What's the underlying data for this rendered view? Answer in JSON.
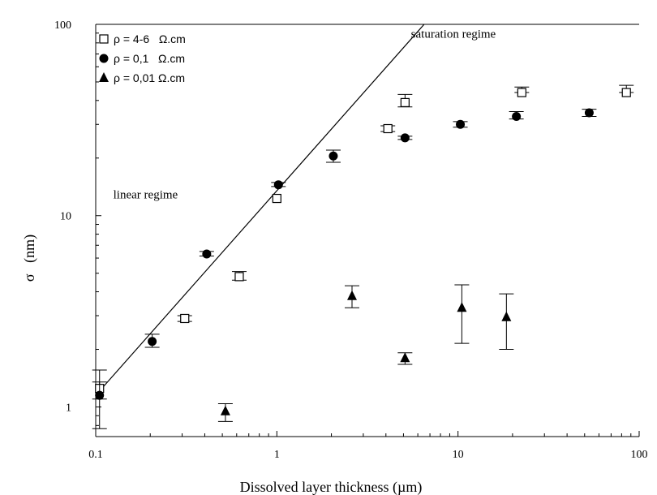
{
  "chart_data": {
    "type": "scatter",
    "x_scale": "log",
    "y_scale": "log",
    "xlim": [
      0.1,
      100
    ],
    "ylim": [
      0.7,
      100
    ],
    "xlabel": "Dissolved layer thickness (µm)",
    "ylabel": "σ   (nm)",
    "x_ticks": [
      {
        "value": 0.1,
        "label": "0.1"
      },
      {
        "value": 1,
        "label": "1"
      },
      {
        "value": 10,
        "label": "10"
      },
      {
        "value": 100,
        "label": "100"
      }
    ],
    "y_ticks": [
      {
        "value": 1,
        "label": "1"
      },
      {
        "value": 10,
        "label": "10"
      },
      {
        "value": 100,
        "label": "100"
      }
    ],
    "legend_position": "top-left",
    "series": [
      {
        "name": "ρ = 4-6   Ω.cm",
        "marker": "open-square",
        "points": [
          {
            "x": 0.105,
            "y": 1.25,
            "lo": 1.1,
            "hi": 1.35
          },
          {
            "x": 0.31,
            "y": 2.9,
            "lo": 2.8,
            "hi": 3.0
          },
          {
            "x": 0.62,
            "y": 4.8,
            "lo": 4.6,
            "hi": 5.1
          },
          {
            "x": 1.0,
            "y": 12.3,
            "lo": 12.3,
            "hi": 12.3
          },
          {
            "x": 4.1,
            "y": 28.5,
            "lo": 27.5,
            "hi": 29.5
          },
          {
            "x": 5.1,
            "y": 39.0,
            "lo": 37.0,
            "hi": 43.0
          },
          {
            "x": 22.5,
            "y": 44.0,
            "lo": 44.0,
            "hi": 47.0
          },
          {
            "x": 85.0,
            "y": 44.0,
            "lo": 44.0,
            "hi": 48.0
          }
        ]
      },
      {
        "name": "ρ = 0,1   Ω.cm",
        "marker": "filled-circle",
        "points": [
          {
            "x": 0.105,
            "y": 1.15,
            "lo": 0.77,
            "hi": 1.56
          },
          {
            "x": 0.205,
            "y": 2.2,
            "lo": 2.05,
            "hi": 2.4
          },
          {
            "x": 0.41,
            "y": 6.3,
            "lo": 6.15,
            "hi": 6.5
          },
          {
            "x": 1.02,
            "y": 14.5,
            "lo": 14.2,
            "hi": 14.9
          },
          {
            "x": 2.05,
            "y": 20.5,
            "lo": 19.0,
            "hi": 22.0
          },
          {
            "x": 5.1,
            "y": 25.5,
            "lo": 25.0,
            "hi": 26.0
          },
          {
            "x": 10.3,
            "y": 30.0,
            "lo": 29.0,
            "hi": 31.0
          },
          {
            "x": 21.0,
            "y": 33.0,
            "lo": 32.0,
            "hi": 35.0
          },
          {
            "x": 53.0,
            "y": 34.5,
            "lo": 33.0,
            "hi": 36.0
          }
        ]
      },
      {
        "name": "ρ = 0,01 Ω.cm",
        "marker": "filled-triangle",
        "points": [
          {
            "x": 0.52,
            "y": 0.95,
            "lo": 0.84,
            "hi": 1.04
          },
          {
            "x": 2.6,
            "y": 3.8,
            "lo": 3.3,
            "hi": 4.3
          },
          {
            "x": 5.1,
            "y": 1.8,
            "lo": 1.67,
            "hi": 1.92
          },
          {
            "x": 10.5,
            "y": 3.3,
            "lo": 2.15,
            "hi": 4.35
          },
          {
            "x": 18.5,
            "y": 2.95,
            "lo": 2.0,
            "hi": 3.9
          }
        ]
      }
    ],
    "fit_line": {
      "x": [
        0.1,
        6.5
      ],
      "y": [
        1.15,
        100
      ]
    },
    "annotations": [
      {
        "text": "saturation regime",
        "x": 5.5,
        "y": 85
      },
      {
        "text": "linear regime",
        "x": 0.125,
        "y": 12.3
      }
    ]
  }
}
